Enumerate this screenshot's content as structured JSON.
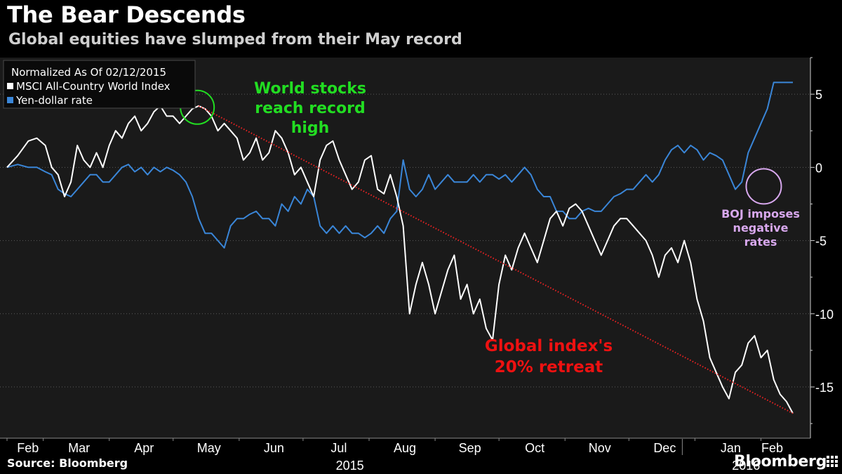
{
  "header": {
    "title": "The Bear Descends",
    "subtitle": "Global equities have slumped from their May record"
  },
  "footer": {
    "source": "Source: Bloomberg",
    "brand": "Bloomberg"
  },
  "colors": {
    "background": "#000000",
    "plot_background": "#1a1a1a",
    "msci": "#ffffff",
    "yen": "#3a86d8",
    "annotation_green": "#22dd22",
    "annotation_red": "#ee1111",
    "annotation_purple": "#d8a8ee",
    "trend": "#ee2222"
  },
  "chart_data": {
    "type": "line",
    "title": "The Bear Descends",
    "legend": {
      "heading": "Normalized As Of 02/12/2015",
      "placement": "top-left"
    },
    "ylim": [
      -18.5,
      7.5
    ],
    "y_ticks": [
      5,
      0,
      -5,
      -10,
      -15
    ],
    "y_tick_labels": [
      "5",
      "0",
      "-5",
      "-10",
      "-15"
    ],
    "x_range": [
      0,
      369
    ],
    "month_ticks": [
      {
        "label": "Feb",
        "x": 0
      },
      {
        "label": "Mar",
        "x": 17
      },
      {
        "label": "Apr",
        "x": 48
      },
      {
        "label": "May",
        "x": 78
      },
      {
        "label": "Jun",
        "x": 109
      },
      {
        "label": "Jul",
        "x": 139
      },
      {
        "label": "Aug",
        "x": 170
      },
      {
        "label": "Sep",
        "x": 201
      },
      {
        "label": "Oct",
        "x": 231
      },
      {
        "label": "Nov",
        "x": 262
      },
      {
        "label": "Dec",
        "x": 292
      },
      {
        "label": "Jan",
        "x": 323
      },
      {
        "label": "Feb",
        "x": 354
      }
    ],
    "year_labels": [
      {
        "label": "2015",
        "x": 161
      },
      {
        "label": "2016",
        "x": 347
      }
    ],
    "year_divider_x": 323,
    "series": [
      {
        "name": "MSCI All-Country World Index",
        "color": "#ffffff",
        "x": [
          0,
          5,
          10,
          14,
          18,
          21,
          24,
          27,
          30,
          33,
          36,
          39,
          42,
          45,
          48,
          51,
          54,
          57,
          60,
          63,
          66,
          69,
          72,
          75,
          78,
          81,
          84,
          87,
          90,
          93,
          96,
          99,
          102,
          105,
          108,
          111,
          114,
          117,
          120,
          123,
          126,
          129,
          132,
          135,
          138,
          141,
          144,
          147,
          150,
          153,
          156,
          159,
          162,
          165,
          168,
          171,
          174,
          177,
          180,
          183,
          186,
          189,
          192,
          195,
          198,
          201,
          204,
          207,
          210,
          213,
          216,
          219,
          222,
          225,
          228,
          231,
          234,
          237,
          240,
          243,
          246,
          249,
          252,
          255,
          258,
          261,
          264,
          267,
          270,
          273,
          276,
          279,
          282,
          285,
          288,
          291,
          294,
          297,
          300,
          303,
          306,
          309,
          312,
          315,
          318,
          321,
          324,
          327,
          330,
          333,
          336,
          339,
          342,
          345,
          348,
          351,
          354,
          357,
          360,
          363,
          366,
          369
        ],
        "values": [
          0,
          0.8,
          1.8,
          2.0,
          1.5,
          0,
          -0.5,
          -2.0,
          -1.0,
          1.5,
          0.5,
          0,
          1.0,
          0,
          1.5,
          2.5,
          2.0,
          3.0,
          3.5,
          2.5,
          3.0,
          3.8,
          4.2,
          3.5,
          3.5,
          3.0,
          3.5,
          4.0,
          4.2,
          4.0,
          3.5,
          2.5,
          3.0,
          2.5,
          2.0,
          0.5,
          1.0,
          2.0,
          0.5,
          1.0,
          2.5,
          2.0,
          1.0,
          -0.5,
          0,
          -1.0,
          -2.0,
          0.5,
          1.5,
          1.8,
          0.5,
          -0.5,
          -1.5,
          -1.0,
          0.5,
          0.8,
          -1.5,
          -1.8,
          -0.5,
          -2.0,
          -4.0,
          -10.0,
          -8.0,
          -6.5,
          -8.0,
          -10.0,
          -8.5,
          -7.0,
          -6.0,
          -9.0,
          -8.0,
          -10.0,
          -9.0,
          -11.0,
          -11.8,
          -8.0,
          -6.0,
          -7.0,
          -5.5,
          -4.5,
          -5.5,
          -6.5,
          -5.0,
          -3.5,
          -3.0,
          -4.0,
          -2.8,
          -2.5,
          -3.0,
          -4.0,
          -5.0,
          -6.0,
          -5.0,
          -4.0,
          -3.5,
          -3.5,
          -4.0,
          -4.5,
          -5.0,
          -6.0,
          -7.5,
          -6.0,
          -5.5,
          -6.5,
          -5.0,
          -6.5,
          -9.0,
          -10.5,
          -13.0,
          -14.0,
          -15.0,
          -15.8,
          -14.0,
          -13.5,
          -12.0,
          -11.5,
          -13.0,
          -12.5,
          -14.5,
          -15.5,
          -16.0,
          -16.8
        ]
      },
      {
        "name": "Yen-dollar rate",
        "color": "#3a86d8",
        "x": [
          0,
          5,
          10,
          14,
          18,
          21,
          24,
          27,
          30,
          33,
          36,
          39,
          42,
          45,
          48,
          51,
          54,
          57,
          60,
          63,
          66,
          69,
          72,
          75,
          78,
          81,
          84,
          87,
          90,
          93,
          96,
          99,
          102,
          105,
          108,
          111,
          114,
          117,
          120,
          123,
          126,
          129,
          132,
          135,
          138,
          141,
          144,
          147,
          150,
          153,
          156,
          159,
          162,
          165,
          168,
          171,
          174,
          177,
          180,
          183,
          186,
          189,
          192,
          195,
          198,
          201,
          204,
          207,
          210,
          213,
          216,
          219,
          222,
          225,
          228,
          231,
          234,
          237,
          240,
          243,
          246,
          249,
          252,
          255,
          258,
          261,
          264,
          267,
          270,
          273,
          276,
          279,
          282,
          285,
          288,
          291,
          294,
          297,
          300,
          303,
          306,
          309,
          312,
          315,
          318,
          321,
          324,
          327,
          330,
          333,
          336,
          339,
          342,
          345,
          348,
          351,
          354,
          357,
          360,
          363,
          366,
          369
        ],
        "values": [
          0,
          0.2,
          0,
          0,
          -0.3,
          -0.5,
          -1.5,
          -1.8,
          -2.0,
          -1.5,
          -1.0,
          -0.5,
          -0.5,
          -1.0,
          -1.0,
          -0.5,
          0,
          0.2,
          -0.3,
          0,
          -0.5,
          0,
          -0.3,
          0,
          -0.2,
          -0.5,
          -1.0,
          -2.0,
          -3.5,
          -4.5,
          -4.5,
          -5.0,
          -5.5,
          -4.0,
          -3.5,
          -3.5,
          -3.2,
          -3.0,
          -3.5,
          -3.5,
          -4.0,
          -2.5,
          -3.0,
          -2.0,
          -2.5,
          -1.5,
          -2.0,
          -4.0,
          -4.5,
          -4.0,
          -4.5,
          -4.0,
          -4.5,
          -4.5,
          -4.8,
          -4.5,
          -4.0,
          -4.5,
          -3.5,
          -3.0,
          0.5,
          -1.5,
          -2.0,
          -1.5,
          -0.5,
          -1.5,
          -1.0,
          -0.5,
          -1.0,
          -1.0,
          -1.0,
          -0.5,
          -1.0,
          -0.5,
          -0.5,
          -0.8,
          -0.5,
          -1.0,
          -0.5,
          0,
          -0.5,
          -1.5,
          -2.0,
          -2.0,
          -3.0,
          -3.0,
          -3.5,
          -3.5,
          -3.0,
          -2.8,
          -3.0,
          -3.0,
          -2.5,
          -2.0,
          -1.8,
          -1.5,
          -1.5,
          -1.0,
          -0.5,
          -1.0,
          -0.5,
          0.5,
          1.2,
          1.5,
          1.0,
          1.5,
          1.2,
          0.5,
          1.0,
          0.8,
          0.5,
          -0.5,
          -1.5,
          -1.0,
          1.0,
          2.0,
          3.0,
          4.0,
          5.8,
          5.8,
          5.8,
          5.8
        ]
      }
    ],
    "trend_line": {
      "from": {
        "x": 90,
        "y": 4.2
      },
      "to": {
        "x": 369,
        "y": -16.8
      }
    },
    "annotations": [
      {
        "id": "record",
        "lines": [
          "World stocks",
          "reach record",
          "high"
        ],
        "anchor_x": 90,
        "anchor_y": 4.2
      },
      {
        "id": "retreat",
        "lines": [
          "Global index's",
          "20% retreat"
        ]
      },
      {
        "id": "boj",
        "lines": [
          "BOJ imposes",
          "negative",
          "rates"
        ],
        "anchor_x": 354,
        "anchor_y": -1.2
      }
    ]
  }
}
